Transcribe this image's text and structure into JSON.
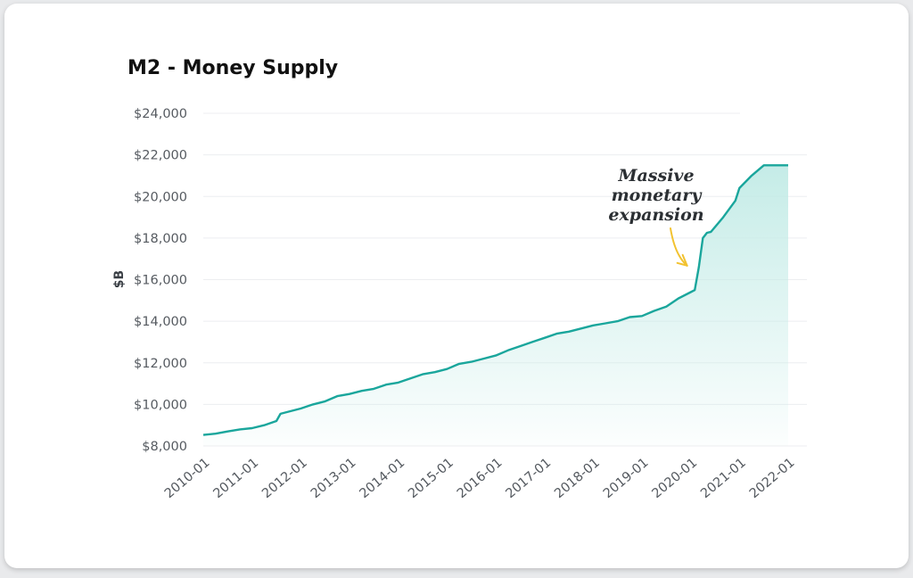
{
  "chart_data": {
    "type": "area",
    "title": "M2 - Money Supply",
    "xlabel": "",
    "ylabel": "$B",
    "ylim": [
      8000,
      24000
    ],
    "y_ticks": [
      8000,
      10000,
      12000,
      14000,
      16000,
      18000,
      20000,
      22000,
      24000
    ],
    "y_tick_labels": [
      "$8,000",
      "$10,000",
      "$12,000",
      "$14,000",
      "$16,000",
      "$18,000",
      "$20,000",
      "$22,000",
      "$24,000"
    ],
    "x_range": [
      "2010-01",
      "2022-01"
    ],
    "x_ticks": [
      "2010-01",
      "2011-01",
      "2012-01",
      "2013-01",
      "2014-01",
      "2015-01",
      "2016-01",
      "2017-01",
      "2018-01",
      "2019-01",
      "2020-01",
      "2021-01",
      "2022-01"
    ],
    "grid": true,
    "colors": {
      "line": "#1aa69c",
      "fill_top": "#c2ebe6",
      "annotation_arrow": "#f2c230"
    },
    "series": [
      {
        "x": [
          "2010-01",
          "2010-04",
          "2010-07",
          "2010-10",
          "2011-01",
          "2011-04",
          "2011-07",
          "2011-08",
          "2011-10",
          "2012-01",
          "2012-04",
          "2012-07",
          "2012-10",
          "2013-01",
          "2013-04",
          "2013-07",
          "2013-10",
          "2014-01",
          "2014-04",
          "2014-07",
          "2014-10",
          "2015-01",
          "2015-04",
          "2015-07",
          "2015-10",
          "2016-01",
          "2016-04",
          "2016-07",
          "2016-10",
          "2017-01",
          "2017-04",
          "2017-07",
          "2017-10",
          "2018-01",
          "2018-04",
          "2018-07",
          "2018-10",
          "2019-01",
          "2019-04",
          "2019-07",
          "2019-10",
          "2020-01",
          "2020-02",
          "2020-03",
          "2020-04",
          "2020-05",
          "2020-06",
          "2020-09",
          "2020-12",
          "2021-01",
          "2021-04",
          "2021-07",
          "2021-10",
          "2022-01"
        ],
        "y": [
          8530,
          8590,
          8700,
          8800,
          8860,
          9000,
          9200,
          9550,
          9650,
          9800,
          10000,
          10150,
          10400,
          10500,
          10650,
          10750,
          10950,
          11050,
          11250,
          11450,
          11550,
          11700,
          11950,
          12050,
          12200,
          12350,
          12600,
          12800,
          13000,
          13200,
          13400,
          13500,
          13650,
          13800,
          13900,
          14000,
          14200,
          14250,
          14500,
          14700,
          15100,
          15400,
          15500,
          16600,
          18000,
          18250,
          18300,
          19000,
          19800,
          20400,
          21000,
          21500,
          21500,
          21500
        ]
      }
    ],
    "annotations": [
      {
        "lines": [
          "Massive",
          "monetary",
          "expansion"
        ],
        "x": "2020-01",
        "y": 15600
      }
    ]
  }
}
